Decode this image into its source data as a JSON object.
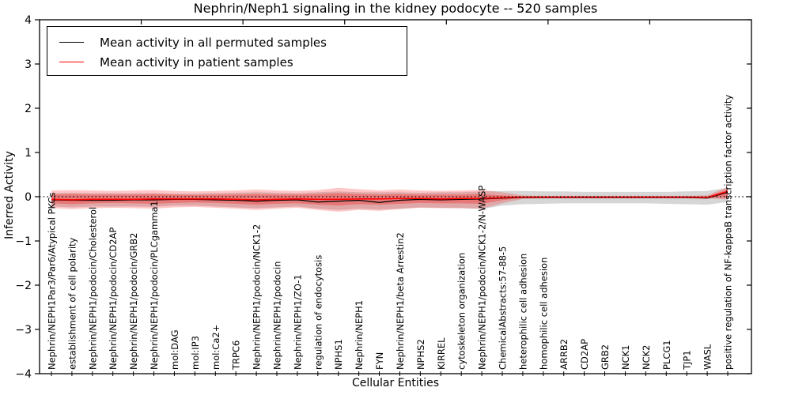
{
  "title": "Nephrin/Neph1 signaling in the kidney podocyte -- 520 samples",
  "legend": {
    "items": [
      {
        "label": "Mean activity in all permuted samples",
        "color": "#000000"
      },
      {
        "label": "Mean activity in patient samples",
        "color": "#ff0000"
      }
    ]
  },
  "chart_data": {
    "type": "line",
    "title": "Nephrin/Neph1 signaling in the kidney podocyte -- 520 samples",
    "xlabel": "Cellular Entities",
    "ylabel": "Inferred Activity",
    "ylim": [
      -4,
      4
    ],
    "yticks": [
      4,
      3,
      2,
      1,
      0,
      -1,
      -2,
      -3,
      -4
    ],
    "grid": false,
    "legend_position": "upper left",
    "zero_line": {
      "y": 0,
      "style": "dotted",
      "color": "#000000"
    },
    "categories": [
      "Nephrin/NEPH1Par3/Par6/Atypical PKCs",
      "establishment of cell polarity",
      "Nephrin/NEPH1/podocin/Cholesterol",
      "Nephrin/NEPH1/podocin/CD2AP",
      "Nephrin/NEPH1/podocin/GRB2",
      "Nephrin/NEPH1/podocin/PLCgamma1",
      "mol:DAG",
      "mol:IP3",
      "mol:Ca2+",
      "TRPC6",
      "Nephrin/NEPH1/podocin/NCK1-2",
      "Nephrin/NEPH1/podocin",
      "Nephrin/NEPH1/ZO-1",
      "regulation of endocytosis",
      "NPHS1",
      "Nephrin/NEPH1",
      "FYN",
      "Nephrin/NEPH1/beta Arrestin2",
      "NPHS2",
      "KIRREL",
      "cytoskeleton organization",
      "Nephrin/NEPH1/podocin/NCK1-2/N-WASP",
      "ChemicalAbstracts:57-88-5",
      "heterophilic cell adhesion",
      "homophilic cell adhesion",
      "ARRB2",
      "CD2AP",
      "GRB2",
      "NCK1",
      "NCK2",
      "PLCG1",
      "TJP1",
      "WASL",
      "positive regulation of NF-kappaB transcription factor activity"
    ],
    "series": [
      {
        "name": "Mean activity in all permuted samples",
        "color": "#000000",
        "values": [
          -0.07,
          -0.08,
          -0.08,
          -0.08,
          -0.07,
          -0.07,
          -0.06,
          -0.06,
          -0.07,
          -0.08,
          -0.1,
          -0.08,
          -0.07,
          -0.12,
          -0.1,
          -0.08,
          -0.13,
          -0.08,
          -0.06,
          -0.07,
          -0.06,
          -0.05,
          -0.03,
          -0.02,
          -0.02,
          -0.02,
          -0.02,
          -0.02,
          -0.02,
          -0.02,
          -0.02,
          -0.02,
          -0.03,
          0.1
        ]
      },
      {
        "name": "Mean activity in patient samples",
        "color": "#ff0000",
        "values": [
          -0.06,
          -0.07,
          -0.06,
          -0.06,
          -0.06,
          -0.05,
          -0.05,
          -0.05,
          -0.05,
          -0.06,
          -0.07,
          -0.06,
          -0.05,
          -0.06,
          -0.06,
          -0.05,
          -0.05,
          -0.04,
          -0.04,
          -0.05,
          -0.04,
          -0.04,
          -0.02,
          -0.01,
          -0.01,
          -0.01,
          -0.01,
          -0.01,
          -0.01,
          -0.01,
          -0.01,
          -0.01,
          -0.02,
          0.12
        ]
      }
    ],
    "bands": [
      {
        "name": "permuted-sample-range",
        "color": "rgba(128,128,128,0.32)",
        "upper": [
          0.08,
          0.09,
          0.08,
          0.08,
          0.08,
          0.08,
          0.07,
          0.07,
          0.08,
          0.09,
          0.1,
          0.09,
          0.08,
          0.1,
          0.12,
          0.1,
          0.1,
          0.1,
          0.09,
          0.1,
          0.1,
          0.12,
          0.13,
          0.13,
          0.12,
          0.12,
          0.11,
          0.11,
          0.11,
          0.11,
          0.11,
          0.12,
          0.13,
          0.2
        ],
        "lower": [
          -0.22,
          -0.24,
          -0.22,
          -0.22,
          -0.22,
          -0.23,
          -0.2,
          -0.2,
          -0.22,
          -0.24,
          -0.26,
          -0.24,
          -0.22,
          -0.27,
          -0.3,
          -0.27,
          -0.29,
          -0.27,
          -0.24,
          -0.25,
          -0.26,
          -0.28,
          -0.2,
          -0.17,
          -0.16,
          -0.15,
          -0.15,
          -0.15,
          -0.15,
          -0.15,
          -0.16,
          -0.17,
          -0.18,
          -0.12
        ]
      },
      {
        "name": "patient-sample-range-outer",
        "color": "rgba(255,0,0,0.22)",
        "upper": [
          0.14,
          0.15,
          0.14,
          0.13,
          0.14,
          0.15,
          0.13,
          0.12,
          0.13,
          0.14,
          0.16,
          0.14,
          0.13,
          0.15,
          0.2,
          0.17,
          0.14,
          0.16,
          0.14,
          0.13,
          0.14,
          0.15,
          0.1,
          0.03,
          0.02,
          0.02,
          0.02,
          0.02,
          0.02,
          0.02,
          0.02,
          0.02,
          0.03,
          0.22
        ],
        "lower": [
          -0.26,
          -0.28,
          -0.26,
          -0.25,
          -0.26,
          -0.27,
          -0.24,
          -0.23,
          -0.25,
          -0.27,
          -0.3,
          -0.27,
          -0.25,
          -0.3,
          -0.34,
          -0.3,
          -0.32,
          -0.28,
          -0.25,
          -0.26,
          -0.26,
          -0.27,
          -0.15,
          -0.05,
          -0.03,
          -0.03,
          -0.03,
          -0.03,
          -0.03,
          -0.03,
          -0.03,
          -0.03,
          -0.04,
          -0.06
        ]
      },
      {
        "name": "patient-sample-range-inner",
        "color": "rgba(255,0,0,0.28)",
        "upper": [
          0.05,
          0.06,
          0.05,
          0.05,
          0.05,
          0.06,
          0.05,
          0.04,
          0.05,
          0.05,
          0.06,
          0.05,
          0.05,
          0.06,
          0.08,
          0.06,
          0.05,
          0.06,
          0.05,
          0.05,
          0.05,
          0.06,
          0.03,
          0.01,
          0.01,
          0.01,
          0.01,
          0.01,
          0.01,
          0.01,
          0.01,
          0.01,
          0.01,
          0.16
        ],
        "lower": [
          -0.15,
          -0.17,
          -0.15,
          -0.14,
          -0.15,
          -0.16,
          -0.14,
          -0.13,
          -0.14,
          -0.16,
          -0.18,
          -0.16,
          -0.15,
          -0.18,
          -0.2,
          -0.17,
          -0.18,
          -0.16,
          -0.14,
          -0.15,
          -0.15,
          -0.16,
          -0.08,
          -0.02,
          -0.02,
          -0.02,
          -0.02,
          -0.02,
          -0.02,
          -0.02,
          -0.02,
          -0.02,
          -0.02,
          -0.02
        ]
      }
    ]
  }
}
